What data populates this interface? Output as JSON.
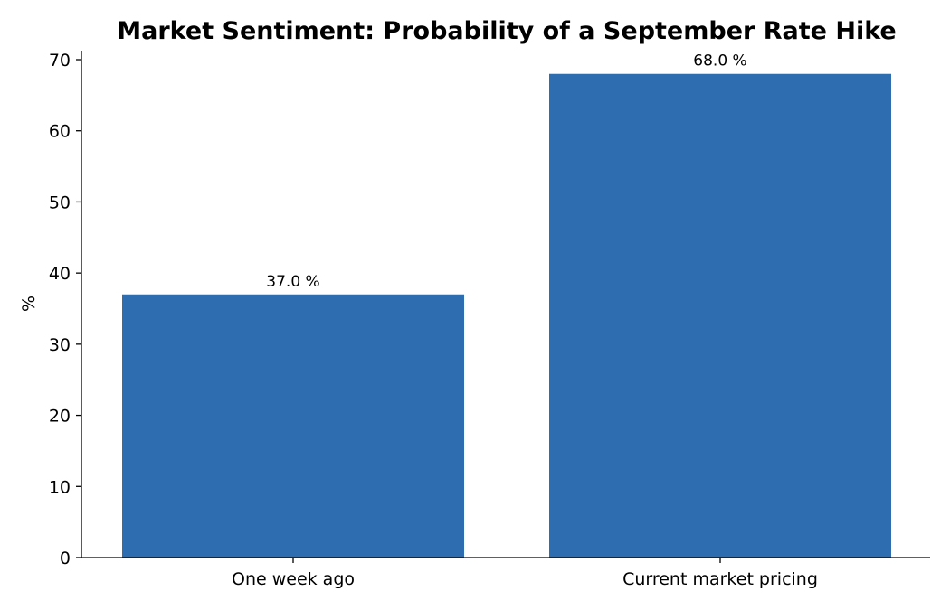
{
  "chart_data": {
    "type": "bar",
    "title": "Market Sentiment: Probability of a September Rate Hike",
    "xlabel": "",
    "ylabel": "%",
    "categories": [
      "One week ago",
      "Current market pricing"
    ],
    "values": [
      37.0,
      68.0
    ],
    "value_labels": [
      "37.0 %",
      "68.0 %"
    ],
    "ylim": [
      0,
      70
    ],
    "yticks": [
      0,
      10,
      20,
      30,
      40,
      50,
      60,
      70
    ],
    "ytick_labels": [
      "0",
      "10",
      "20",
      "30",
      "40",
      "50",
      "60",
      "70"
    ],
    "bar_color": "#2e6daf",
    "grid": false,
    "legend": "none"
  }
}
